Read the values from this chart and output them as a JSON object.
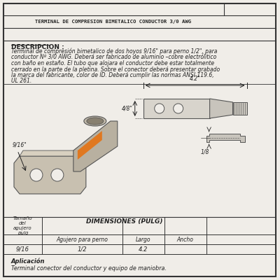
{
  "title_line": "TERMINAL DE COMPRESION BIMETALICO CONDUCTOR 3/0 AWG",
  "description_header": "DESCRIPCION :",
  "description_text": [
    "Terminal de compresión bimetalico de dos hoyos 9/16\" para perno 1/2\", para",
    "conductor Nº 3/0 AWG. Deberá ser fabricado de aluminio –cobre electrólitico",
    "con baño en estaño. El tubo que alojara el conductor debe estar totalmente",
    "cerrado en la parte de la pletina. Sobre el conector deberá presentar grabado",
    "la marca del fabricante, color de ID. Deberá cumplir las normas ANSI 119.6,",
    "UL 261."
  ],
  "dim_largo": "4.2\"",
  "dim_ancho": "4/8\"",
  "dim_altura": "1/8",
  "label_916": "9/16\"",
  "aplicacion_header": "Aplicación",
  "aplicacion_text": "Terminal conector del conductor y equipo de maniobra.",
  "bg_color": "#f0ede8",
  "line_color": "#555555",
  "orange_color": "#e07820",
  "border_color": "#333333",
  "text_color": "#222222",
  "plate_color": "#c8c0b0",
  "plate_top_color": "#d8d0c0",
  "tube_color": "#b8b0a0",
  "tube_ellipse_color": "#c0b8a8",
  "tube_opening_color": "#888070",
  "fv_rect_color": "#d8d4cc",
  "taper_color": "#c8c4bc",
  "sv_color": "#c8c4bc"
}
